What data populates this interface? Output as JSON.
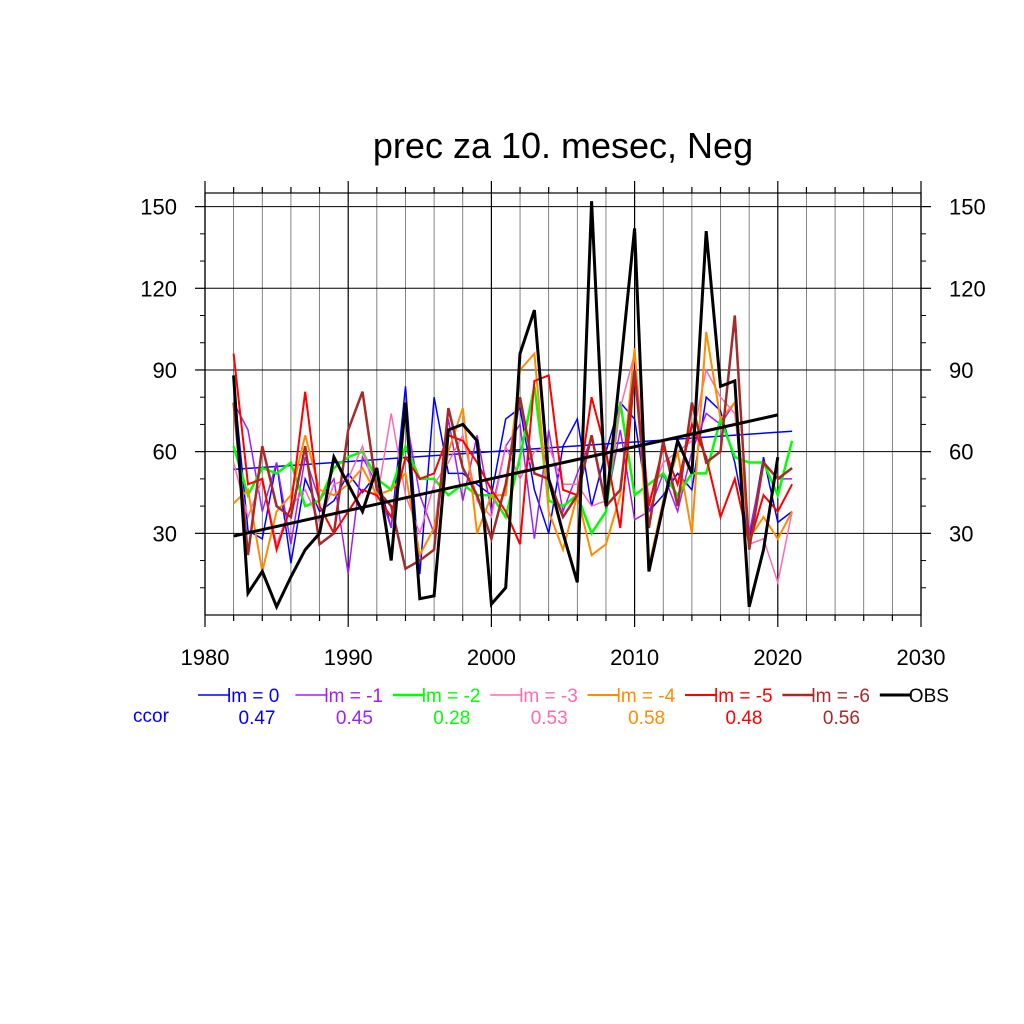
{
  "chart_data": {
    "type": "line",
    "title": "prec za 10. mesec, Neg",
    "xlabel": "",
    "ylabel": "",
    "xlim": [
      1980,
      2030
    ],
    "ylim": [
      0,
      155
    ],
    "x_ticks": [
      1980,
      1990,
      2000,
      2010,
      2020,
      2030
    ],
    "y_ticks": [
      30,
      60,
      90,
      120,
      150
    ],
    "grid": true,
    "legend_position": "bottom",
    "ccor_label": "ccor",
    "years": [
      1982,
      1983,
      1984,
      1985,
      1986,
      1987,
      1988,
      1989,
      1990,
      1991,
      1992,
      1993,
      1994,
      1995,
      1996,
      1997,
      1998,
      1999,
      2000,
      2001,
      2002,
      2003,
      2004,
      2005,
      2006,
      2007,
      2008,
      2009,
      2010,
      2011,
      2012,
      2013,
      2014,
      2015,
      2016,
      2017,
      2018,
      2019,
      2020,
      2021
    ],
    "series": [
      {
        "name": "lm = 0",
        "ccor": "0.47",
        "color": "#0000ff",
        "width": 1.5,
        "values": [
          86,
          31,
          28,
          56,
          19,
          50,
          38,
          42,
          52,
          45,
          52,
          32,
          84,
          15,
          80,
          52,
          52,
          48,
          44,
          72,
          76,
          46,
          30,
          62,
          72,
          40,
          60,
          78,
          72,
          38,
          44,
          52,
          46,
          80,
          75,
          56,
          28,
          58,
          34,
          38
        ],
        "trend": [
          53.5,
          67.5
        ]
      },
      {
        "name": "lm = -1",
        "ccor": "0.45",
        "color": "#a020f0",
        "width": 1.5,
        "values": [
          78,
          68,
          38,
          56,
          26,
          58,
          42,
          50,
          15,
          58,
          48,
          32,
          74,
          44,
          30,
          72,
          42,
          66,
          38,
          62,
          70,
          28,
          68,
          38,
          52,
          65,
          40,
          68,
          35,
          38,
          52,
          38,
          60,
          74,
          70,
          78,
          30,
          56,
          50,
          50
        ]
      },
      {
        "name": "lm = -2",
        "ccor": "0.28",
        "color": "#00ff00",
        "width": 2.5,
        "values": [
          62,
          44,
          54,
          52,
          56,
          40,
          42,
          54,
          58,
          60,
          50,
          46,
          62,
          50,
          50,
          44,
          48,
          44,
          44,
          36,
          58,
          84,
          42,
          40,
          44,
          30,
          38,
          78,
          44,
          48,
          52,
          44,
          52,
          52,
          72,
          58,
          56,
          56,
          44,
          64
        ]
      },
      {
        "name": "lm = -3",
        "ccor": "0.53",
        "color": "#ff69b4",
        "width": 1.5,
        "values": [
          56,
          36,
          50,
          26,
          40,
          46,
          34,
          48,
          50,
          62,
          42,
          74,
          44,
          30,
          48,
          56,
          66,
          42,
          36,
          62,
          50,
          60,
          62,
          48,
          48,
          40,
          42,
          76,
          96,
          42,
          56,
          60,
          64,
          90,
          80,
          74,
          26,
          28,
          12,
          38
        ]
      },
      {
        "name": "lm = -4",
        "ccor": "0.58",
        "color": "#ff8c00",
        "width": 2,
        "values": [
          41,
          46,
          16,
          38,
          44,
          66,
          46,
          44,
          48,
          54,
          44,
          46,
          52,
          22,
          32,
          60,
          76,
          30,
          44,
          44,
          90,
          96,
          38,
          24,
          44,
          22,
          26,
          44,
          98,
          18,
          42,
          60,
          30,
          104,
          72,
          78,
          28,
          36,
          28,
          38
        ]
      },
      {
        "name": "lm = -5",
        "ccor": "0.48",
        "color": "#ff0000",
        "width": 2,
        "values": [
          96,
          48,
          50,
          24,
          40,
          82,
          40,
          30,
          38,
          46,
          44,
          36,
          58,
          50,
          52,
          66,
          64,
          56,
          46,
          38,
          26,
          86,
          88,
          46,
          44,
          80,
          60,
          32,
          88,
          40,
          62,
          48,
          70,
          58,
          36,
          50,
          26,
          44,
          38,
          48
        ]
      },
      {
        "name": "lm = -6",
        "ccor": "0.56",
        "color": "#a52a2a",
        "width": 2.5,
        "values": [
          78,
          22,
          62,
          40,
          36,
          62,
          26,
          30,
          68,
          82,
          46,
          40,
          17,
          20,
          24,
          76,
          54,
          44,
          28,
          48,
          80,
          52,
          50,
          36,
          44,
          66,
          40,
          46,
          90,
          32,
          64,
          40,
          78,
          56,
          60,
          110,
          24,
          56,
          50,
          54
        ]
      },
      {
        "name": "OBS",
        "ccor": "",
        "color": "#000000",
        "width": 3,
        "values": [
          88,
          8,
          16,
          3,
          14,
          24,
          30,
          58,
          48,
          38,
          54,
          20,
          78,
          6,
          7,
          68,
          70,
          64,
          4,
          10,
          96,
          112,
          50,
          30,
          12,
          152,
          40,
          90,
          142,
          16,
          40,
          64,
          52,
          141,
          84,
          86,
          3,
          24,
          58,
          null
        ],
        "trend": [
          29,
          73.5
        ]
      }
    ]
  }
}
